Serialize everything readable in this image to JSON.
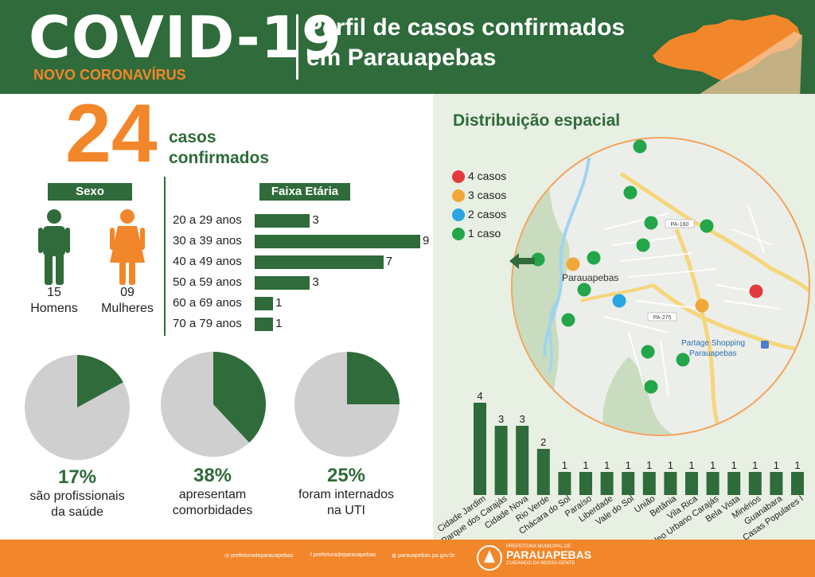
{
  "header": {
    "title": "COVID-19",
    "subtitle": "NOVO CORONAVÍRUS",
    "heading_line1": "Perfil de casos confirmados",
    "heading_line2": "em Parauapebas"
  },
  "summary": {
    "cases": "24",
    "cases_label_line1": "casos",
    "cases_label_line2": "confirmados"
  },
  "sex": {
    "label": "Sexo",
    "men_count": "15",
    "men_label": "Homens",
    "women_count": "09",
    "women_label": "Mulheres"
  },
  "age": {
    "label": "Faixa Etária",
    "groups": [
      {
        "label": "20 a 29 anos",
        "value": 3
      },
      {
        "label": "30 a 39 anos",
        "value": 9
      },
      {
        "label": "40 a 49 anos",
        "value": 7
      },
      {
        "label": "50 a 59 anos",
        "value": 3
      },
      {
        "label": "60 a 69 anos",
        "value": 1
      },
      {
        "label": "70 a 79 anos",
        "value": 1
      }
    ]
  },
  "pies": [
    {
      "pct": "17%",
      "fraction": 0.17,
      "line1": "são profissionais",
      "line2": "da saúde"
    },
    {
      "pct": "38%",
      "fraction": 0.38,
      "line1": "apresentam",
      "line2": "comorbidades"
    },
    {
      "pct": "25%",
      "fraction": 0.25,
      "line1": "foram internados",
      "line2": "na UTI"
    }
  ],
  "distribution": {
    "title": "Distribuição espacial",
    "legend": [
      {
        "label": "4 casos",
        "color": "#e23b3b"
      },
      {
        "label": "3 casos",
        "color": "#f0a83a"
      },
      {
        "label": "2 casos",
        "color": "#2aa7e0"
      },
      {
        "label": "1 caso",
        "color": "#23a64a"
      }
    ],
    "map_labels": {
      "city": "Parauapebas",
      "shopping_line1": "Partage Shopping",
      "shopping_line2": "Parauapebas",
      "road1": "PA-160",
      "road2": "PA-275"
    }
  },
  "chart_data": {
    "type": "bar",
    "title": "",
    "xlabel": "",
    "ylabel": "",
    "categories": [
      "Cidade Jardim",
      "Parque dos Carajás",
      "Cidade Nova",
      "Rio Verde",
      "Chácara do Sol",
      "Paraíso",
      "Liberdade",
      "Vale do Sol",
      "União",
      "Betânia",
      "Vila Rica",
      "Núcleo Urbano Carajás",
      "Bela Vista",
      "Minérios",
      "Guanabara",
      "Casas Populares I"
    ],
    "values": [
      4,
      3,
      3,
      2,
      1,
      1,
      1,
      1,
      1,
      1,
      1,
      1,
      1,
      1,
      1,
      1
    ],
    "ylim": [
      0,
      4
    ]
  },
  "footer": {
    "instagram": "prefeituradeparauapebas",
    "facebook": "prefeituradeparauapebas",
    "website": "parauapebas.pa.gov.br",
    "logo_top": "PREFEITURA MUNICIPAL DE",
    "logo_name": "PARAUAPEBAS",
    "logo_slogan": "CUIDANDO DA NOSSA GENTE"
  },
  "colors": {
    "green": "#2f6b3b",
    "orange": "#f2862a",
    "grey": "#cfcfcf"
  }
}
